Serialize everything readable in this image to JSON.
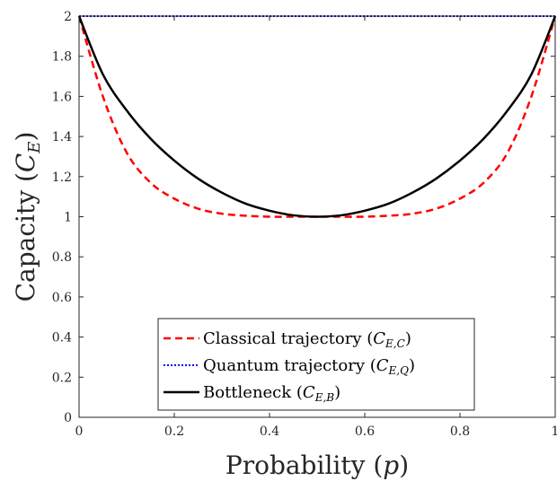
{
  "chart_data": {
    "type": "line",
    "xlabel": "Probability (p)",
    "ylabel": "Capacity (C_E)",
    "xlim": [
      0,
      1
    ],
    "ylim": [
      0,
      2
    ],
    "xticks": [
      "0",
      "0.2",
      "0.4",
      "0.6",
      "0.8",
      "1"
    ],
    "yticks": [
      "0",
      "0.2",
      "0.4",
      "0.6",
      "0.8",
      "1",
      "1.2",
      "1.4",
      "1.6",
      "1.8",
      "2"
    ],
    "grid": false,
    "legend_position": "bottom-center",
    "series": [
      {
        "name": "Classical trajectory (C_{E,C})",
        "color": "#ff0000",
        "style": "dashed",
        "x": [
          0,
          0.05,
          0.1,
          0.15,
          0.2,
          0.25,
          0.3,
          0.35,
          0.4,
          0.45,
          0.5,
          0.55,
          0.6,
          0.65,
          0.7,
          0.75,
          0.8,
          0.85,
          0.9,
          0.95,
          1
        ],
        "y": [
          2,
          1.6,
          1.32,
          1.17,
          1.09,
          1.04,
          1.015,
          1.005,
          1.0,
          1.0,
          1.0,
          1.0,
          1.0,
          1.005,
          1.015,
          1.04,
          1.09,
          1.17,
          1.32,
          1.6,
          2
        ]
      },
      {
        "name": "Quantum trajectory (C_{E,Q})",
        "color": "#0000ff",
        "style": "dotted",
        "x": [
          0,
          1
        ],
        "y": [
          2,
          2
        ]
      },
      {
        "name": "Bottleneck (C_{E,B})",
        "color": "#000000",
        "style": "solid",
        "x": [
          0,
          0.05,
          0.1,
          0.15,
          0.2,
          0.25,
          0.3,
          0.35,
          0.4,
          0.45,
          0.5,
          0.55,
          0.6,
          0.65,
          0.7,
          0.75,
          0.8,
          0.85,
          0.9,
          0.95,
          1
        ],
        "y": [
          2,
          1.71,
          1.53,
          1.39,
          1.28,
          1.19,
          1.12,
          1.065,
          1.03,
          1.007,
          1.0,
          1.007,
          1.03,
          1.065,
          1.12,
          1.19,
          1.28,
          1.39,
          1.53,
          1.71,
          2
        ]
      }
    ]
  },
  "legend": {
    "items": [
      {
        "label": "Classical trajectory (",
        "sub": "E,C"
      },
      {
        "label": "Quantum trajectory (",
        "sub": "E,Q"
      },
      {
        "label": "Bottleneck (",
        "sub": "E,B"
      }
    ]
  },
  "axis_titles": {
    "x_text": "Probability (",
    "x_var": "p",
    "y_text": "Capacity (",
    "y_var": "C",
    "y_sub": "E"
  }
}
